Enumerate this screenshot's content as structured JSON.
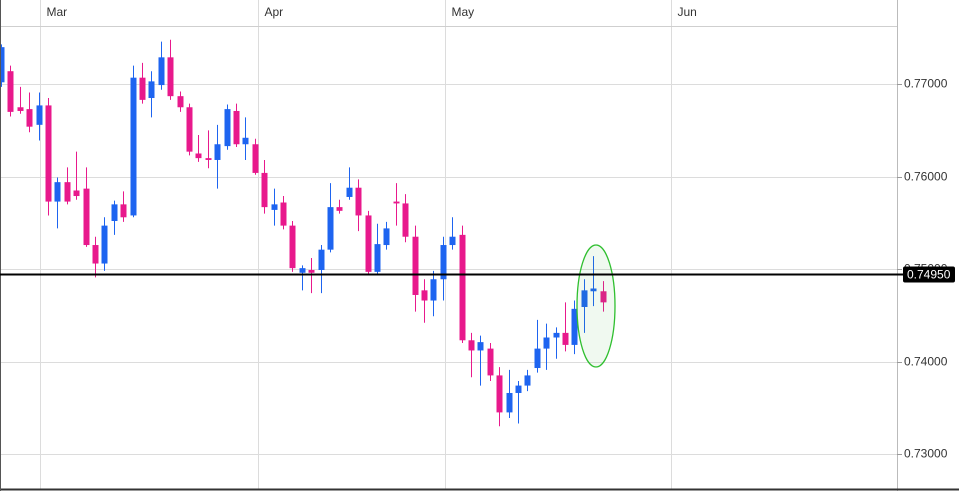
{
  "chart_data": {
    "type": "candlestick",
    "categories": [
      null,
      null,
      null,
      null,
      null,
      null,
      null,
      null,
      null,
      null,
      null,
      null,
      null,
      null,
      null,
      null,
      null,
      null,
      null,
      null,
      null,
      null,
      null,
      null,
      null,
      null,
      null,
      null,
      null,
      null,
      null,
      null,
      null,
      null,
      null,
      null,
      null,
      null,
      null,
      null,
      null,
      null,
      null,
      null,
      null,
      null,
      null,
      null,
      null,
      null,
      null,
      null,
      null,
      null,
      null,
      null,
      null,
      null,
      null,
      null,
      null,
      null,
      null,
      null,
      null
    ],
    "open": [
      0.7702,
      0.7714,
      0.7675,
      0.7673,
      0.7656,
      0.7677,
      0.7573,
      0.7594,
      0.7585,
      0.7587,
      0.7526,
      0.7506,
      0.7552,
      0.757,
      0.7558,
      0.7707,
      0.7685,
      0.7699,
      0.7729,
      0.7687,
      0.7675,
      0.7625,
      0.762,
      0.7618,
      0.7633,
      0.7671,
      0.7635,
      0.7635,
      0.7604,
      0.7564,
      0.7572,
      0.7547,
      0.7496,
      0.7499,
      0.7499,
      0.7521,
      0.7567,
      0.7578,
      0.7588,
      0.7558,
      0.7497,
      0.7526,
      0.7573,
      0.7571,
      0.7535,
      0.7477,
      0.7466,
      0.7489,
      0.7526,
      0.7537,
      0.7423,
      0.7412,
      0.7414,
      0.7385,
      0.7345,
      0.7366,
      0.7374,
      0.7393,
      0.7414,
      0.7426,
      0.7431,
      0.7418,
      0.7459,
      0.7476,
      0.7476
    ],
    "high": [
      0.7743,
      0.772,
      0.7697,
      0.7691,
      0.7691,
      0.7685,
      0.7599,
      0.761,
      0.7627,
      0.761,
      0.7535,
      0.7556,
      0.7574,
      0.7584,
      0.772,
      0.7723,
      0.7714,
      0.7746,
      0.7748,
      0.7692,
      0.7679,
      0.7645,
      0.765,
      0.7656,
      0.7678,
      0.7679,
      0.7664,
      0.7641,
      0.7618,
      0.7587,
      0.7579,
      0.7552,
      0.7504,
      0.7512,
      0.7526,
      0.7593,
      0.7575,
      0.761,
      0.7597,
      0.7563,
      0.7549,
      0.7551,
      0.7593,
      0.7581,
      0.7547,
      0.7489,
      0.7498,
      0.7535,
      0.7556,
      0.7547,
      0.7431,
      0.7428,
      0.742,
      0.7394,
      0.7391,
      0.7379,
      0.7391,
      0.7445,
      0.7441,
      0.7437,
      0.7464,
      0.7466,
      0.7489,
      0.7514,
      0.7487
    ],
    "low": [
      0.7697,
      0.7665,
      0.7668,
      0.7648,
      0.7639,
      0.7558,
      0.7544,
      0.757,
      0.7575,
      0.7524,
      0.7491,
      0.7498,
      0.7537,
      0.7551,
      0.7556,
      0.7679,
      0.7664,
      0.7694,
      0.7683,
      0.767,
      0.7623,
      0.7616,
      0.7609,
      0.7587,
      0.7629,
      0.7632,
      0.7618,
      0.7602,
      0.756,
      0.7547,
      0.7543,
      0.7497,
      0.7477,
      0.7474,
      0.7474,
      0.7518,
      0.756,
      0.7575,
      0.7541,
      0.7494,
      0.7494,
      0.7521,
      0.7547,
      0.7529,
      0.7454,
      0.7442,
      0.7449,
      0.7466,
      0.7521,
      0.742,
      0.7383,
      0.7374,
      0.7379,
      0.733,
      0.7339,
      0.7333,
      0.7368,
      0.7388,
      0.7391,
      0.7403,
      0.7411,
      0.7408,
      0.7431,
      0.746,
      0.7454
    ],
    "close": [
      0.774,
      0.767,
      0.7671,
      0.7654,
      0.7677,
      0.7573,
      0.7594,
      0.7573,
      0.7579,
      0.7526,
      0.7506,
      0.7547,
      0.757,
      0.7556,
      0.7707,
      0.7683,
      0.7703,
      0.7729,
      0.7687,
      0.7675,
      0.7627,
      0.762,
      0.7618,
      0.7635,
      0.7673,
      0.7635,
      0.7642,
      0.7604,
      0.7567,
      0.757,
      0.7547,
      0.7501,
      0.7501,
      0.7496,
      0.7521,
      0.7567,
      0.7563,
      0.7588,
      0.7558,
      0.7497,
      0.7527,
      0.7544,
      0.7571,
      0.7535,
      0.7472,
      0.7466,
      0.7489,
      0.7526,
      0.7535,
      0.7423,
      0.7412,
      0.7421,
      0.7385,
      0.7345,
      0.7366,
      0.7374,
      0.7385,
      0.7414,
      0.7426,
      0.7431,
      0.7418,
      0.7457,
      0.7477,
      0.7479,
      0.7464
    ],
    "up_color": "#1e64f0",
    "down_color": "#e8198c",
    "xlim": [
      -0.1,
      95.3
    ],
    "xticks": [
      {
        "value": 4.15,
        "label": "Mar"
      },
      {
        "value": 27.34,
        "label": "Apr"
      },
      {
        "value": 47.23,
        "label": "May"
      },
      {
        "value": 71.28,
        "label": "Jun"
      }
    ],
    "ylim": [
      0.726,
      0.7791
    ],
    "yticks": [
      {
        "value": 0.73,
        "label": "0.73000"
      },
      {
        "value": 0.74,
        "label": "0.74000"
      },
      {
        "value": 0.75,
        "label": "0.75000"
      },
      {
        "value": 0.76,
        "label": "0.76000"
      },
      {
        "value": 0.77,
        "label": "0.77000"
      }
    ],
    "price_line": {
      "value": 0.7495,
      "label": "0.74950"
    },
    "grid": true
  }
}
